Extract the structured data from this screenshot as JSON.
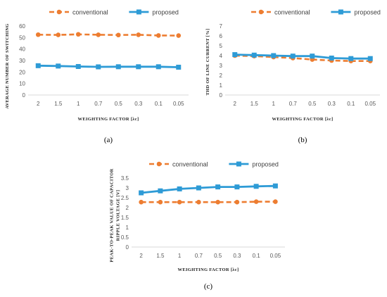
{
  "chart_data": [
    {
      "type": "line",
      "panel_label": "(a)",
      "categories": [
        "2",
        "1.5",
        "1",
        "0.7",
        "0.5",
        "0.3",
        "0.1",
        "0.05"
      ],
      "series": [
        {
          "name": "conventional",
          "color": "#ED7D31",
          "line_style": "dashed",
          "marker": "circle",
          "values": [
            52.5,
            52.3,
            52.8,
            52.4,
            52.2,
            52.4,
            51.8,
            51.7
          ]
        },
        {
          "name": "proposed",
          "color": "#2E9BD6",
          "line_style": "solid",
          "marker": "square",
          "values": [
            25.5,
            25.2,
            24.8,
            24.5,
            24.6,
            24.6,
            24.6,
            24.2
          ]
        }
      ],
      "xlabel": "WEIGHTING FACTOR [λc]",
      "ylabel": "AVERAGE NUMBER OF SWITCHING",
      "ylabel_lines": [
        "AVERAGE NUMBER OF SWITCHING"
      ],
      "ylim": [
        0,
        60
      ],
      "yticks": [
        "0",
        "10",
        "20",
        "30",
        "40",
        "50",
        "60"
      ],
      "legend_position": "top",
      "grid": false
    },
    {
      "type": "line",
      "panel_label": "(b)",
      "categories": [
        "2",
        "1.5",
        "1",
        "0.7",
        "0.5",
        "0.3",
        "0.1",
        "0.05"
      ],
      "series": [
        {
          "name": "conventional",
          "color": "#ED7D31",
          "line_style": "dashed",
          "marker": "circle",
          "values": [
            4.0,
            3.95,
            3.85,
            3.75,
            3.6,
            3.5,
            3.45,
            3.45
          ]
        },
        {
          "name": "proposed",
          "color": "#2E9BD6",
          "line_style": "solid",
          "marker": "square",
          "values": [
            4.1,
            4.05,
            4.0,
            3.95,
            3.95,
            3.75,
            3.7,
            3.7
          ]
        }
      ],
      "xlabel": "WEIGHTING FACTOR [λc]",
      "ylabel": "THD OF LINE CURRENT [%]",
      "ylabel_lines": [
        "THD OF LINE CURRENT [%]"
      ],
      "ylim": [
        0,
        7
      ],
      "yticks": [
        "0",
        "1",
        "2",
        "3",
        "4",
        "5",
        "6",
        "7"
      ],
      "legend_position": "top",
      "grid": false
    },
    {
      "type": "line",
      "panel_label": "(c)",
      "categories": [
        "2",
        "1.5",
        "1",
        "0.7",
        "0.5",
        "0.3",
        "0.1",
        "0.05"
      ],
      "series": [
        {
          "name": "conventional",
          "color": "#ED7D31",
          "line_style": "dashed",
          "marker": "circle",
          "values": [
            2.28,
            2.28,
            2.28,
            2.28,
            2.28,
            2.28,
            2.3,
            2.3
          ]
        },
        {
          "name": "proposed",
          "color": "#2E9BD6",
          "line_style": "solid",
          "marker": "square",
          "values": [
            2.75,
            2.85,
            2.95,
            3.0,
            3.05,
            3.05,
            3.08,
            3.1
          ]
        }
      ],
      "xlabel": "WEIGHTING FACTOR [λc]",
      "ylabel": "PEAK-TO-PEAK VALUE OF CAPACITOR RIPPLE VOLTAGE [V]",
      "ylabel_lines": [
        "PEAK-TO-PEAK VALUE OF CAPACITOR",
        "RIPPLE VOLTAGE [V]"
      ],
      "ylim": [
        0,
        3.5
      ],
      "yticks": [
        "0",
        "0.5",
        "1",
        "1.5",
        "2",
        "2.5",
        "3",
        "3.5"
      ],
      "legend_position": "top",
      "grid": false
    }
  ]
}
